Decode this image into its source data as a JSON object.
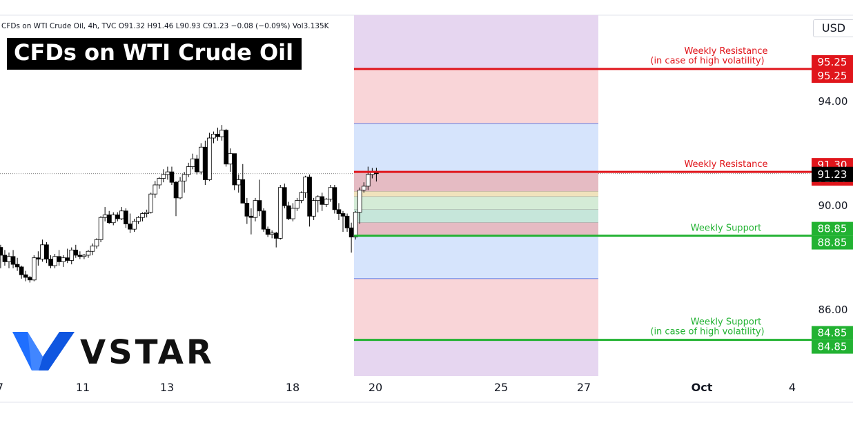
{
  "header": {
    "ohlc_text": "CFDs on WTI Crude Oil, 4h, TVC  O91.32  H91.46  L90.93  C91.23  −0.08 (−0.09%)  Vol3.135K",
    "title": "CFDs on WTI Crude Oil",
    "currency": "USD"
  },
  "brand": {
    "name": "VSTAR",
    "logo_color": "#1f6fff"
  },
  "colors": {
    "resistance": "#e0151b",
    "support": "#22b232",
    "last_price": "#000000",
    "zone_purple": "#e6d6f0",
    "zone_red": "#f9d5d8",
    "zone_blue": "#d6e4fc"
  },
  "chart_data": {
    "type": "candlestick",
    "timeframe": "4h",
    "x_tick_labels": [
      "7",
      "11",
      "13",
      "18",
      "20",
      "25",
      "27",
      "Oct",
      "4"
    ],
    "y_tick_labels": [
      "94.00",
      "90.00",
      "86.00"
    ],
    "ylim": [
      83.3,
      97.8
    ],
    "levels": [
      {
        "label": "Weekly Resistance",
        "sublabel": "(in case of high volatility)",
        "value": 95.25,
        "display": "95.25",
        "type": "resistance"
      },
      {
        "label": "Weekly Resistance",
        "sublabel": "",
        "value": 91.3,
        "display": "91.30",
        "type": "resistance"
      },
      {
        "label": "Weekly Support",
        "sublabel": "",
        "value": 88.85,
        "display": "88.85",
        "type": "support"
      },
      {
        "label": "Weekly Support",
        "sublabel": "(in case of high volatility)",
        "value": 84.85,
        "display": "84.85",
        "type": "support"
      }
    ],
    "last_price": {
      "value": 91.23,
      "display": "91.23"
    },
    "candles": [
      {
        "o": 88.4,
        "h": 88.5,
        "l": 87.6,
        "c": 88.1
      },
      {
        "o": 88.1,
        "h": 88.3,
        "l": 87.7,
        "c": 87.85
      },
      {
        "o": 87.85,
        "h": 88.2,
        "l": 87.6,
        "c": 88.05
      },
      {
        "o": 88.05,
        "h": 88.3,
        "l": 87.6,
        "c": 87.75
      },
      {
        "o": 87.75,
        "h": 88.0,
        "l": 87.5,
        "c": 87.65
      },
      {
        "o": 87.65,
        "h": 87.7,
        "l": 87.2,
        "c": 87.35
      },
      {
        "o": 87.35,
        "h": 87.5,
        "l": 87.1,
        "c": 87.25
      },
      {
        "o": 87.25,
        "h": 87.3,
        "l": 87.05,
        "c": 87.15
      },
      {
        "o": 87.15,
        "h": 88.1,
        "l": 87.1,
        "c": 88.0
      },
      {
        "o": 88.0,
        "h": 88.25,
        "l": 87.7,
        "c": 87.95
      },
      {
        "o": 87.95,
        "h": 88.7,
        "l": 87.85,
        "c": 88.5
      },
      {
        "o": 88.5,
        "h": 88.6,
        "l": 87.8,
        "c": 87.95
      },
      {
        "o": 87.95,
        "h": 88.1,
        "l": 87.6,
        "c": 87.7
      },
      {
        "o": 87.7,
        "h": 88.15,
        "l": 87.6,
        "c": 88.05
      },
      {
        "o": 88.05,
        "h": 88.3,
        "l": 87.7,
        "c": 87.85
      },
      {
        "o": 87.85,
        "h": 88.1,
        "l": 87.65,
        "c": 88.0
      },
      {
        "o": 88.0,
        "h": 88.35,
        "l": 87.8,
        "c": 87.9
      },
      {
        "o": 87.9,
        "h": 88.4,
        "l": 87.75,
        "c": 88.3
      },
      {
        "o": 88.3,
        "h": 88.5,
        "l": 88.0,
        "c": 88.1
      },
      {
        "o": 88.1,
        "h": 88.25,
        "l": 87.95,
        "c": 88.05
      },
      {
        "o": 88.05,
        "h": 88.15,
        "l": 87.95,
        "c": 88.1
      },
      {
        "o": 88.1,
        "h": 88.3,
        "l": 88.0,
        "c": 88.25
      },
      {
        "o": 88.25,
        "h": 88.55,
        "l": 88.1,
        "c": 88.45
      },
      {
        "o": 88.45,
        "h": 88.75,
        "l": 88.35,
        "c": 88.7
      },
      {
        "o": 88.7,
        "h": 89.6,
        "l": 88.6,
        "c": 89.55
      },
      {
        "o": 89.55,
        "h": 89.95,
        "l": 89.4,
        "c": 89.65
      },
      {
        "o": 89.65,
        "h": 89.8,
        "l": 89.3,
        "c": 89.35
      },
      {
        "o": 89.35,
        "h": 89.75,
        "l": 89.25,
        "c": 89.65
      },
      {
        "o": 89.65,
        "h": 89.75,
        "l": 89.4,
        "c": 89.5
      },
      {
        "o": 89.5,
        "h": 89.95,
        "l": 89.45,
        "c": 89.8
      },
      {
        "o": 89.8,
        "h": 89.9,
        "l": 89.15,
        "c": 89.3
      },
      {
        "o": 89.3,
        "h": 89.7,
        "l": 88.95,
        "c": 89.1
      },
      {
        "o": 89.1,
        "h": 89.5,
        "l": 89.0,
        "c": 89.4
      },
      {
        "o": 89.4,
        "h": 89.6,
        "l": 89.3,
        "c": 89.55
      },
      {
        "o": 89.55,
        "h": 89.75,
        "l": 89.4,
        "c": 89.7
      },
      {
        "o": 89.7,
        "h": 89.85,
        "l": 89.55,
        "c": 89.75
      },
      {
        "o": 89.75,
        "h": 90.5,
        "l": 89.7,
        "c": 90.45
      },
      {
        "o": 90.45,
        "h": 90.95,
        "l": 90.3,
        "c": 90.8
      },
      {
        "o": 90.8,
        "h": 91.1,
        "l": 90.65,
        "c": 91.05
      },
      {
        "o": 91.05,
        "h": 91.4,
        "l": 90.9,
        "c": 91.2
      },
      {
        "o": 91.2,
        "h": 91.5,
        "l": 91.0,
        "c": 91.3
      },
      {
        "o": 91.3,
        "h": 91.5,
        "l": 90.8,
        "c": 90.9
      },
      {
        "o": 90.9,
        "h": 90.95,
        "l": 89.6,
        "c": 90.3
      },
      {
        "o": 90.3,
        "h": 91.1,
        "l": 90.25,
        "c": 90.95
      },
      {
        "o": 90.95,
        "h": 91.3,
        "l": 90.5,
        "c": 91.2
      },
      {
        "o": 91.2,
        "h": 91.65,
        "l": 91.1,
        "c": 91.5
      },
      {
        "o": 91.5,
        "h": 92.0,
        "l": 91.4,
        "c": 91.8
      },
      {
        "o": 91.8,
        "h": 91.95,
        "l": 91.2,
        "c": 91.3
      },
      {
        "o": 91.3,
        "h": 92.4,
        "l": 91.2,
        "c": 92.25
      },
      {
        "o": 92.25,
        "h": 92.5,
        "l": 90.8,
        "c": 91.0
      },
      {
        "o": 91.0,
        "h": 92.8,
        "l": 90.95,
        "c": 92.6
      },
      {
        "o": 92.6,
        "h": 92.85,
        "l": 92.4,
        "c": 92.75
      },
      {
        "o": 92.75,
        "h": 93.0,
        "l": 92.5,
        "c": 92.65
      },
      {
        "o": 92.65,
        "h": 93.1,
        "l": 92.5,
        "c": 92.9
      },
      {
        "o": 92.9,
        "h": 92.95,
        "l": 91.5,
        "c": 91.6
      },
      {
        "o": 91.6,
        "h": 92.2,
        "l": 91.3,
        "c": 92.0
      },
      {
        "o": 92.0,
        "h": 92.0,
        "l": 90.6,
        "c": 90.8
      },
      {
        "o": 90.8,
        "h": 91.2,
        "l": 90.5,
        "c": 91.0
      },
      {
        "o": 91.0,
        "h": 91.6,
        "l": 90.2,
        "c": 90.1
      },
      {
        "o": 90.1,
        "h": 90.3,
        "l": 89.3,
        "c": 89.6
      },
      {
        "o": 89.6,
        "h": 89.9,
        "l": 88.9,
        "c": 89.55
      },
      {
        "o": 89.55,
        "h": 90.3,
        "l": 89.4,
        "c": 90.2
      },
      {
        "o": 90.2,
        "h": 91.0,
        "l": 89.6,
        "c": 89.8
      },
      {
        "o": 89.8,
        "h": 89.9,
        "l": 89.0,
        "c": 89.1
      },
      {
        "o": 89.1,
        "h": 89.2,
        "l": 88.8,
        "c": 88.9
      },
      {
        "o": 88.9,
        "h": 89.05,
        "l": 88.75,
        "c": 88.95
      },
      {
        "o": 88.95,
        "h": 89.0,
        "l": 88.4,
        "c": 88.75
      },
      {
        "o": 88.75,
        "h": 90.8,
        "l": 88.7,
        "c": 90.7
      },
      {
        "o": 90.7,
        "h": 90.85,
        "l": 89.9,
        "c": 90.0
      },
      {
        "o": 90.0,
        "h": 90.15,
        "l": 89.45,
        "c": 89.5
      },
      {
        "o": 89.5,
        "h": 90.1,
        "l": 89.4,
        "c": 89.9
      },
      {
        "o": 89.9,
        "h": 90.3,
        "l": 89.8,
        "c": 90.2
      },
      {
        "o": 90.2,
        "h": 90.55,
        "l": 90.1,
        "c": 90.5
      },
      {
        "o": 90.5,
        "h": 91.15,
        "l": 90.3,
        "c": 91.1
      },
      {
        "o": 91.1,
        "h": 91.2,
        "l": 89.2,
        "c": 89.6
      },
      {
        "o": 89.6,
        "h": 90.3,
        "l": 89.45,
        "c": 90.2
      },
      {
        "o": 90.2,
        "h": 90.4,
        "l": 89.75,
        "c": 90.35
      },
      {
        "o": 90.35,
        "h": 90.5,
        "l": 89.8,
        "c": 90.05
      },
      {
        "o": 90.05,
        "h": 90.3,
        "l": 89.95,
        "c": 90.25
      },
      {
        "o": 90.25,
        "h": 90.8,
        "l": 90.15,
        "c": 90.7
      },
      {
        "o": 90.7,
        "h": 90.8,
        "l": 89.7,
        "c": 89.85
      },
      {
        "o": 89.85,
        "h": 90.1,
        "l": 89.45,
        "c": 89.7
      },
      {
        "o": 89.7,
        "h": 89.8,
        "l": 89.0,
        "c": 89.6
      },
      {
        "o": 89.6,
        "h": 89.7,
        "l": 89.0,
        "c": 89.15
      },
      {
        "o": 89.15,
        "h": 89.35,
        "l": 88.2,
        "c": 88.8
      },
      {
        "o": 88.8,
        "h": 89.8,
        "l": 88.7,
        "c": 89.75
      },
      {
        "o": 89.75,
        "h": 90.7,
        "l": 89.3,
        "c": 90.6
      },
      {
        "o": 90.6,
        "h": 90.9,
        "l": 90.5,
        "c": 90.75
      },
      {
        "o": 90.75,
        "h": 91.5,
        "l": 90.6,
        "c": 91.2
      },
      {
        "o": 91.2,
        "h": 91.45,
        "l": 91.05,
        "c": 91.3
      },
      {
        "o": 91.32,
        "h": 91.46,
        "l": 90.93,
        "c": 91.23
      }
    ]
  }
}
